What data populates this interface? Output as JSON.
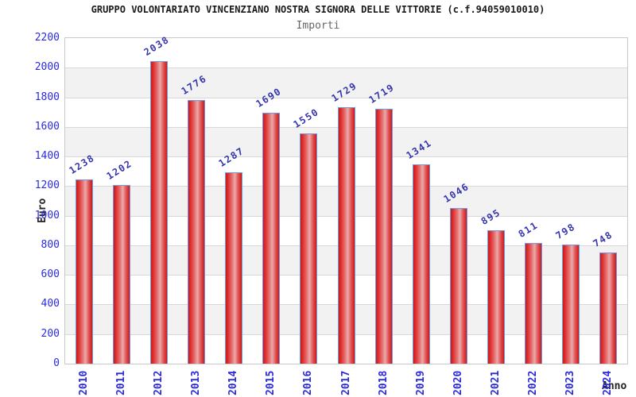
{
  "chart_data": {
    "type": "bar",
    "title": "GRUPPO VOLONTARIATO VINCENZIANO NOSTRA SIGNORA DELLE VITTORIE (c.f.94059010010)",
    "subtitle": "Importi",
    "xlabel": "Anno",
    "ylabel": "Euro",
    "categories": [
      "2010",
      "2011",
      "2012",
      "2013",
      "2014",
      "2015",
      "2016",
      "2017",
      "2018",
      "2019",
      "2020",
      "2021",
      "2022",
      "2023",
      "2024"
    ],
    "values": [
      1238,
      1202,
      2038,
      1776,
      1287,
      1690,
      1550,
      1729,
      1719,
      1341,
      1046,
      895,
      811,
      798,
      748
    ],
    "ylim": [
      0,
      2200
    ],
    "ytick_step": 200,
    "grid": true,
    "legend_position": "none",
    "value_labels_rotated": true,
    "colors": {
      "bar_fill_edge": "#c91a1a",
      "bar_fill_highlight": "#eaabab",
      "bar_border": "#6f9be6",
      "tick_label": "#2b2bdd",
      "value_label": "#3535ad",
      "band_gray": "#f2f2f2",
      "gridline": "#d8d8d8",
      "plot_border": "#c9c9c9",
      "title": "#1a1a1a",
      "subtitle": "#666666",
      "axis_title": "#222222",
      "background": "#ffffff"
    }
  }
}
